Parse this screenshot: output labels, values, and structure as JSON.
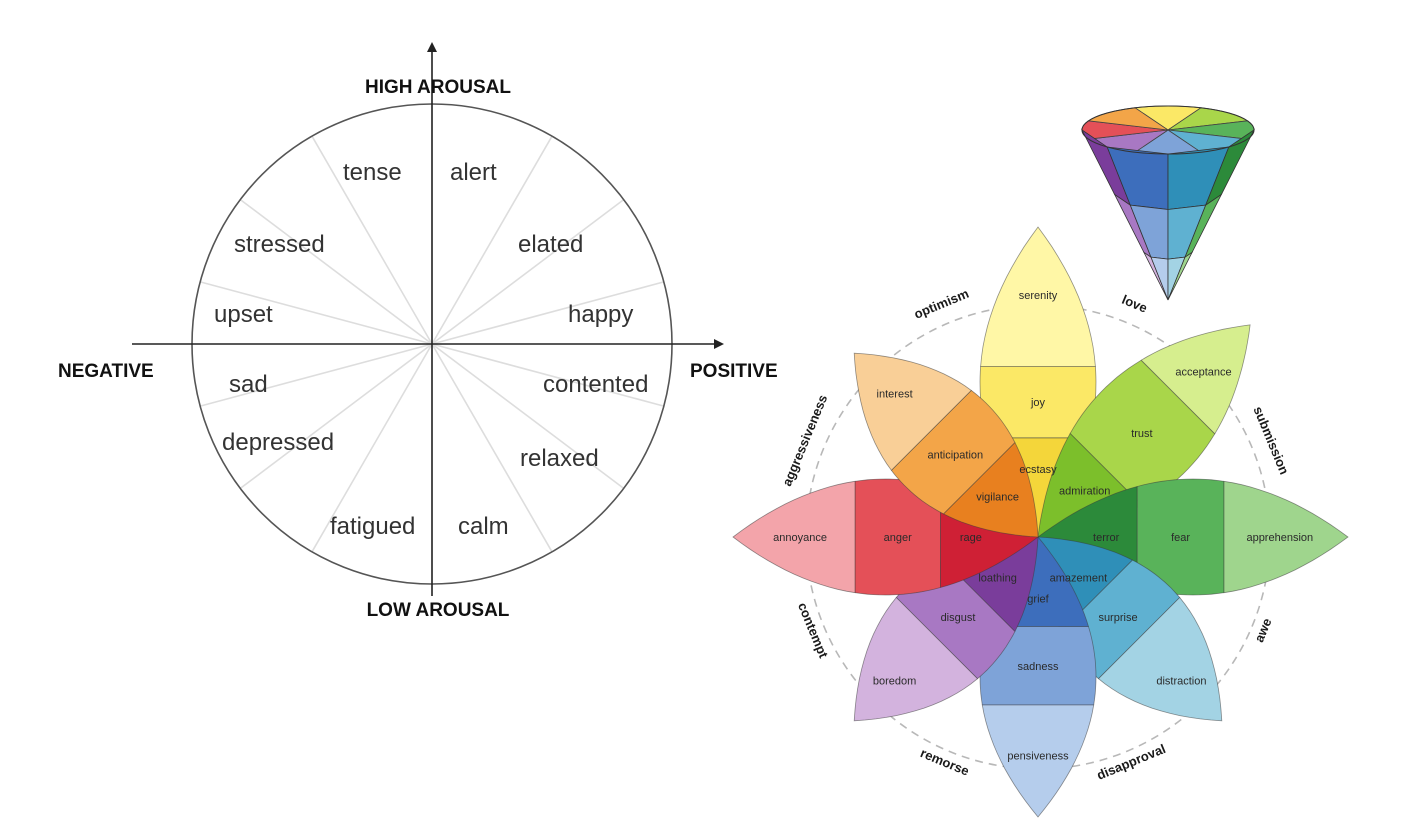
{
  "circumplex": {
    "axes": {
      "top": "HIGH AROUSAL",
      "bottom": "LOW AROUSAL",
      "left": "NEGATIVE",
      "right": "POSITIVE"
    },
    "emotions": [
      {
        "id": "tense",
        "label": "tense"
      },
      {
        "id": "alert",
        "label": "alert"
      },
      {
        "id": "stressed",
        "label": "stressed"
      },
      {
        "id": "elated",
        "label": "elated"
      },
      {
        "id": "upset",
        "label": "upset"
      },
      {
        "id": "happy",
        "label": "happy"
      },
      {
        "id": "sad",
        "label": "sad"
      },
      {
        "id": "contented",
        "label": "contented"
      },
      {
        "id": "depressed",
        "label": "depressed"
      },
      {
        "id": "relaxed",
        "label": "relaxed"
      },
      {
        "id": "fatigued",
        "label": "fatigued"
      },
      {
        "id": "calm",
        "label": "calm"
      }
    ]
  },
  "wheel": {
    "petals": [
      {
        "id": "yellow",
        "colors": [
          "#fff7a6",
          "#fbe866",
          "#f4d63a"
        ],
        "labels": [
          "serenity",
          "joy",
          "ecstasy"
        ]
      },
      {
        "id": "lightgreen",
        "colors": [
          "#d6ee8e",
          "#a9d64a",
          "#7cbf2b"
        ],
        "labels": [
          "acceptance",
          "trust",
          "admiration"
        ]
      },
      {
        "id": "green",
        "colors": [
          "#9fd58d",
          "#59b35a",
          "#2c8a3a"
        ],
        "labels": [
          "apprehension",
          "fear",
          "terror"
        ]
      },
      {
        "id": "teal",
        "colors": [
          "#a3d3e4",
          "#5fb1d1",
          "#2f8fb8"
        ],
        "labels": [
          "distraction",
          "surprise",
          "amazement"
        ]
      },
      {
        "id": "blue",
        "colors": [
          "#b5cdec",
          "#7ea3d8",
          "#3d6ebc"
        ],
        "labels": [
          "pensiveness",
          "sadness",
          "grief"
        ]
      },
      {
        "id": "purple",
        "colors": [
          "#d3b3de",
          "#a878c3",
          "#7a3d9b"
        ],
        "labels": [
          "boredom",
          "disgust",
          "loathing"
        ]
      },
      {
        "id": "red",
        "colors": [
          "#f3a4aa",
          "#e45058",
          "#cf2035"
        ],
        "labels": [
          "annoyance",
          "anger",
          "rage"
        ]
      },
      {
        "id": "orange",
        "colors": [
          "#f9cf97",
          "#f3a548",
          "#e8801f"
        ],
        "labels": [
          "interest",
          "anticipation",
          "vigilance"
        ]
      }
    ],
    "dyads": [
      "love",
      "submission",
      "awe",
      "disapproval",
      "remorse",
      "contempt",
      "aggressiveness",
      "optimism"
    ]
  }
}
